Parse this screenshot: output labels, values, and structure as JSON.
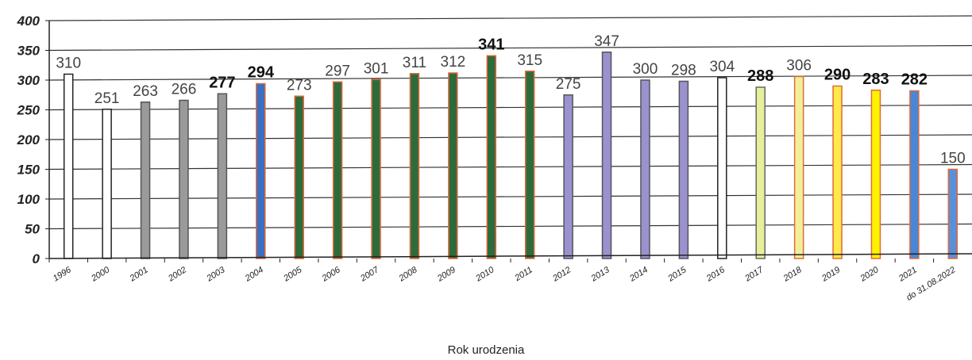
{
  "chart_data": {
    "type": "bar",
    "title": "",
    "xlabel": "Rok urodzenia",
    "ylabel": "",
    "ylim": [
      0,
      400
    ],
    "yticks": [
      0,
      50,
      100,
      150,
      200,
      250,
      300,
      350,
      400
    ],
    "grid": true,
    "legend": "none",
    "categories": [
      "1996",
      "2000",
      "2001",
      "2002",
      "2003",
      "2004",
      "2005",
      "2006",
      "2007",
      "2008",
      "2009",
      "2010",
      "2011",
      "2012",
      "2013",
      "2014",
      "2015",
      "2016",
      "2017",
      "2018",
      "2019",
      "2020",
      "2021",
      "do 31.08.2022"
    ],
    "values": [
      310,
      251,
      263,
      266,
      277,
      294,
      273,
      297,
      301,
      311,
      312,
      341,
      315,
      275,
      347,
      300,
      298,
      304,
      288,
      306,
      290,
      283,
      282,
      150
    ],
    "data_labels": [
      "310",
      "251",
      "263",
      "266",
      "277",
      "294",
      "273",
      "297",
      "301",
      "311",
      "312",
      "341",
      "315",
      "275",
      "347",
      "300",
      "298",
      "304",
      "288",
      "306",
      "290",
      "283",
      "282",
      "150"
    ],
    "bold_labels": [
      false,
      false,
      false,
      false,
      true,
      true,
      false,
      false,
      false,
      false,
      false,
      true,
      false,
      false,
      false,
      false,
      false,
      false,
      true,
      false,
      true,
      true,
      true,
      false
    ],
    "bar_colors": [
      "#ffffff",
      "#ffffff",
      "#9a9a9a",
      "#9a9a9a",
      "#9a9a9a",
      "#3a6fc4",
      "#2e6b3c",
      "#2e6b3c",
      "#2e6b3c",
      "#2e6b3c",
      "#2e6b3c",
      "#2e6b3c",
      "#2e6b3c",
      "#9a92cf",
      "#9a92cf",
      "#9a92cf",
      "#9a92cf",
      "#ffffff",
      "#e6ef9a",
      "#f2ef9a",
      "#ffe84a",
      "#fff200",
      "#4a86d6",
      "#5b8fd8"
    ],
    "bar_borders": [
      "#222222",
      "#222222",
      "#555555",
      "#555555",
      "#555555",
      "#e06a3a",
      "#e06a3a",
      "#e06a3a",
      "#e06a3a",
      "#e06a3a",
      "#e06a3a",
      "#e06a3a",
      "#e06a3a",
      "#555555",
      "#555555",
      "#555555",
      "#555555",
      "#222222",
      "#666666",
      "#e06a3a",
      "#e06a3a",
      "#e06a3a",
      "#e06a3a",
      "#e06a3a"
    ]
  }
}
